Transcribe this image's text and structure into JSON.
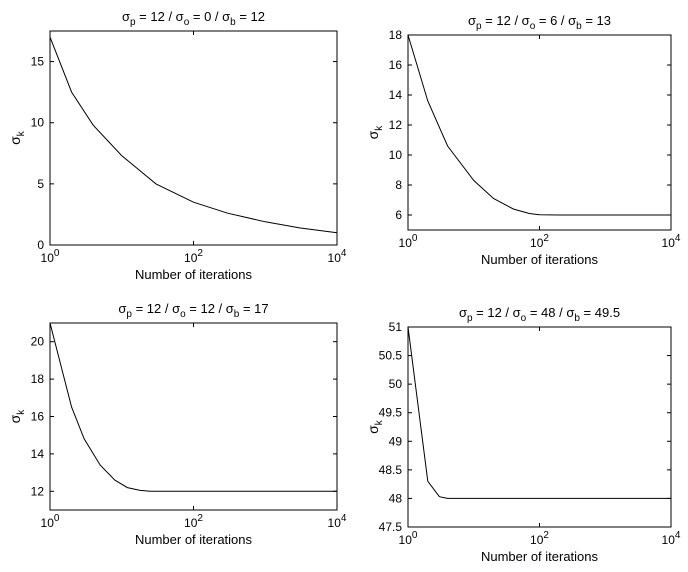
{
  "chart_data": [
    {
      "type": "line",
      "title": {
        "parts": [
          {
            "t": "σ"
          },
          {
            "t": "p",
            "sub": true
          },
          {
            "t": " = 12  /  σ"
          },
          {
            "t": "o",
            "sub": true
          },
          {
            "t": " = 0  /  σ"
          },
          {
            "t": "b",
            "sub": true
          },
          {
            "t": " = 12"
          }
        ]
      },
      "xlabel": "Number of iterations",
      "ylabel": {
        "base": "σ",
        "sub": "k"
      },
      "xscale": "log",
      "xlim": [
        1,
        10000
      ],
      "ylim": [
        0,
        17.5
      ],
      "xticks": [
        {
          "base": "10",
          "exp": "0",
          "v": 1
        },
        {
          "base": "10",
          "exp": "2",
          "v": 100
        },
        {
          "base": "10",
          "exp": "4",
          "v": 10000
        }
      ],
      "yticks": [
        {
          "label": "0",
          "v": 0
        },
        {
          "label": "5",
          "v": 5
        },
        {
          "label": "10",
          "v": 10
        },
        {
          "label": "15",
          "v": 15
        }
      ],
      "grid": false,
      "series": [
        {
          "x": [
            1,
            2,
            4,
            10,
            30,
            100,
            300,
            1000,
            3000,
            10000
          ],
          "y": [
            17,
            12.5,
            9.8,
            7.3,
            5.0,
            3.5,
            2.6,
            1.9,
            1.4,
            1.0
          ]
        }
      ]
    },
    {
      "type": "line",
      "title": {
        "parts": [
          {
            "t": "σ"
          },
          {
            "t": "p",
            "sub": true
          },
          {
            "t": " = 12  /  σ"
          },
          {
            "t": "o",
            "sub": true
          },
          {
            "t": " = 6  /  σ"
          },
          {
            "t": "b",
            "sub": true
          },
          {
            "t": " = 13"
          }
        ]
      },
      "xlabel": "Number of iterations",
      "ylabel": {
        "base": "σ",
        "sub": "k"
      },
      "xscale": "log",
      "xlim": [
        1,
        10000
      ],
      "ylim": [
        5,
        18
      ],
      "xticks": [
        {
          "base": "10",
          "exp": "0",
          "v": 1
        },
        {
          "base": "10",
          "exp": "2",
          "v": 100
        },
        {
          "base": "10",
          "exp": "4",
          "v": 10000
        }
      ],
      "yticks": [
        {
          "label": "6",
          "v": 6
        },
        {
          "label": "8",
          "v": 8
        },
        {
          "label": "10",
          "v": 10
        },
        {
          "label": "12",
          "v": 12
        },
        {
          "label": "14",
          "v": 14
        },
        {
          "label": "16",
          "v": 16
        },
        {
          "label": "18",
          "v": 18
        }
      ],
      "grid": false,
      "series": [
        {
          "x": [
            1,
            2,
            4,
            10,
            20,
            40,
            70,
            100,
            200,
            1000,
            10000
          ],
          "y": [
            18,
            13.6,
            10.6,
            8.3,
            7.1,
            6.4,
            6.1,
            6.02,
            6.0,
            6.0,
            6.0
          ]
        }
      ]
    },
    {
      "type": "line",
      "title": {
        "parts": [
          {
            "t": "σ"
          },
          {
            "t": "p",
            "sub": true
          },
          {
            "t": " = 12  /  σ"
          },
          {
            "t": "o",
            "sub": true
          },
          {
            "t": " = 12  /  σ"
          },
          {
            "t": "b",
            "sub": true
          },
          {
            "t": " = 17"
          }
        ]
      },
      "xlabel": "Number of iterations",
      "ylabel": {
        "base": "σ",
        "sub": "k"
      },
      "xscale": "log",
      "xlim": [
        1,
        10000
      ],
      "ylim": [
        11,
        21
      ],
      "xticks": [
        {
          "base": "10",
          "exp": "0",
          "v": 1
        },
        {
          "base": "10",
          "exp": "2",
          "v": 100
        },
        {
          "base": "10",
          "exp": "4",
          "v": 10000
        }
      ],
      "yticks": [
        {
          "label": "12",
          "v": 12
        },
        {
          "label": "14",
          "v": 14
        },
        {
          "label": "16",
          "v": 16
        },
        {
          "label": "18",
          "v": 18
        },
        {
          "label": "20",
          "v": 20
        }
      ],
      "grid": false,
      "series": [
        {
          "x": [
            1,
            2,
            3,
            5,
            8,
            12,
            18,
            25,
            40,
            100,
            10000
          ],
          "y": [
            21,
            16.5,
            14.8,
            13.4,
            12.6,
            12.2,
            12.05,
            12.0,
            12.0,
            12.0,
            12.0
          ]
        }
      ]
    },
    {
      "type": "line",
      "title": {
        "parts": [
          {
            "t": "σ"
          },
          {
            "t": "p",
            "sub": true
          },
          {
            "t": " = 12  /  σ"
          },
          {
            "t": "o",
            "sub": true
          },
          {
            "t": " = 48  /  σ"
          },
          {
            "t": "b",
            "sub": true
          },
          {
            "t": " = 49.5"
          }
        ]
      },
      "xlabel": "Number of iterations",
      "ylabel": {
        "base": "σ",
        "sub": "k"
      },
      "xscale": "log",
      "xlim": [
        1,
        10000
      ],
      "ylim": [
        47.5,
        51
      ],
      "xticks": [
        {
          "base": "10",
          "exp": "0",
          "v": 1
        },
        {
          "base": "10",
          "exp": "2",
          "v": 100
        },
        {
          "base": "10",
          "exp": "4",
          "v": 10000
        }
      ],
      "yticks": [
        {
          "label": "47.5",
          "v": 47.5
        },
        {
          "label": "48",
          "v": 48
        },
        {
          "label": "48.5",
          "v": 48.5
        },
        {
          "label": "49",
          "v": 49
        },
        {
          "label": "49.5",
          "v": 49.5
        },
        {
          "label": "50",
          "v": 50
        },
        {
          "label": "50.5",
          "v": 50.5
        },
        {
          "label": "51",
          "v": 51
        }
      ],
      "grid": false,
      "series": [
        {
          "x": [
            1,
            2,
            3,
            4,
            10000
          ],
          "y": [
            51,
            48.3,
            48.03,
            48.0,
            48.0
          ]
        }
      ]
    }
  ]
}
